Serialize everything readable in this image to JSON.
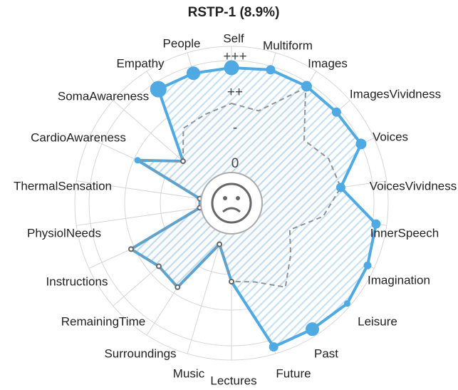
{
  "chart_data": {
    "type": "radar",
    "title": "RSTP-1 (8.9%)",
    "categories": [
      "Self",
      "Multiform",
      "Images",
      "ImagesVividness",
      "Voices",
      "VoicesVividness",
      "InnerSpeech",
      "Imagination",
      "Leisure",
      "Past",
      "Future",
      "Lectures",
      "Music",
      "Surroundings",
      "RemainingTime",
      "Instructions",
      "PhysiolNeeds",
      "ThermalSensation",
      "CardioAwareness",
      "SomaAwareness",
      "Empathy",
      "People"
    ],
    "series": [
      {
        "color": "#a6a9ad",
        "line_style": "dashed",
        "fill": "solid",
        "values": [
          2.8,
          2.7,
          3.85,
          2.7,
          3.0,
          3.1,
          2.6,
          1.8,
          2.2,
          2.8,
          2.3,
          2.2,
          1.2,
          2.8,
          2.7,
          3.1,
          0.9,
          0.9,
          2.9,
          1.8,
          2.5,
          2.6
        ]
      },
      {
        "color": "#4fa9e2",
        "line_style": "solid",
        "fill": "hatch",
        "values": [
          3.8,
          3.9,
          3.9,
          3.9,
          4.0,
          3.1,
          4.1,
          4.2,
          4.3,
          4.2,
          4.2,
          2.2,
          1.2,
          2.8,
          2.7,
          3.1,
          0.9,
          0.9,
          2.9,
          1.8,
          3.8,
          3.8
        ],
        "marker_sizes": [
          10,
          6,
          7,
          6,
          7,
          6,
          6,
          5,
          4,
          9,
          6,
          3,
          3,
          3,
          3,
          3,
          3,
          3,
          4,
          3,
          11,
          9
        ]
      }
    ],
    "rlim": [
      0,
      4.4
    ],
    "rticks": [
      {
        "value": 1,
        "label": "0"
      },
      {
        "value": 2,
        "label": "-"
      },
      {
        "value": 3,
        "label": "++"
      },
      {
        "value": 4,
        "label": "+++"
      }
    ],
    "grid": true
  }
}
